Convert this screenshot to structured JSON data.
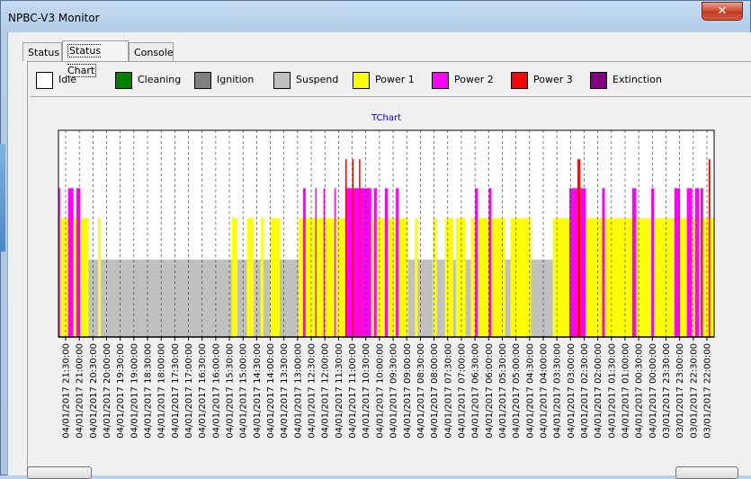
{
  "window": {
    "title": "NPBC-V3 Monitor",
    "close_label": "✕"
  },
  "tabs": [
    {
      "label": "Status",
      "active": false
    },
    {
      "label": "Status Chart",
      "active": true
    },
    {
      "label": "Console",
      "active": false
    }
  ],
  "legend": [
    {
      "label": "Idle",
      "color": "#ffffff"
    },
    {
      "label": "Cleaning",
      "color": "#008000"
    },
    {
      "label": "Ignition",
      "color": "#808080"
    },
    {
      "label": "Suspend",
      "color": "#c0c0c0"
    },
    {
      "label": "Power 1",
      "color": "#ffff00"
    },
    {
      "label": "Power 2",
      "color": "#ff00ff"
    },
    {
      "label": "Power 3",
      "color": "#ff0000"
    },
    {
      "label": "Extinction",
      "color": "#800080"
    }
  ],
  "chart_data": {
    "type": "step-status",
    "title": "TChart",
    "title_color": "#0000ff",
    "levels": [
      "Idle",
      "Cleaning",
      "Ignition",
      "Suspend",
      "Power 1",
      "Power 2",
      "Power 3",
      "Extinction"
    ],
    "x_labels": [
      "04/01/2017 21:30:00",
      "04/01/2017 21:00:00",
      "04/01/2017 20:30:00",
      "04/01/2017 20:00:00",
      "04/01/2017 19:30:00",
      "04/01/2017 19:00:00",
      "04/01/2017 18:30:00",
      "04/01/2017 18:00:00",
      "04/01/2017 17:30:00",
      "04/01/2017 17:00:00",
      "04/01/2017 16:30:00",
      "04/01/2017 16:00:00",
      "04/01/2017 15:30:00",
      "04/01/2017 15:00:00",
      "04/01/2017 14:30:00",
      "04/01/2017 14:00:00",
      "04/01/2017 13:30:00",
      "04/01/2017 13:00:00",
      "04/01/2017 12:30:00",
      "04/01/2017 12:00:00",
      "04/01/2017 11:30:00",
      "04/01/2017 11:00:00",
      "04/01/2017 10:30:00",
      "04/01/2017 10:00:00",
      "04/01/2017 09:30:00",
      "04/01/2017 09:00:00",
      "04/01/2017 08:30:00",
      "04/01/2017 08:00:00",
      "04/01/2017 07:30:00",
      "04/01/2017 07:00:00",
      "04/01/2017 06:30:00",
      "04/01/2017 06:00:00",
      "04/01/2017 05:30:00",
      "04/01/2017 05:00:00",
      "04/01/2017 04:30:00",
      "04/01/2017 04:00:00",
      "04/01/2017 03:30:00",
      "04/01/2017 03:00:00",
      "04/01/2017 02:30:00",
      "04/01/2017 02:00:00",
      "04/01/2017 01:30:00",
      "04/01/2017 01:00:00",
      "04/01/2017 00:30:00",
      "04/01/2017 00:00:00",
      "03/01/2017 23:30:00",
      "03/01/2017 23:00:00",
      "03/01/2017 22:30:00",
      "03/01/2017 22:00:00"
    ],
    "x_range_hours": [
      0,
      24
    ],
    "x_direction": "right-to-left (time decreasing)",
    "baseline_level": "Suspend",
    "segments": [
      {
        "start": 0.0,
        "end": 0.06,
        "level": "Power 2"
      },
      {
        "start": 0.06,
        "end": 0.35,
        "level": "Power 1"
      },
      {
        "start": 0.35,
        "end": 0.55,
        "level": "Power 2"
      },
      {
        "start": 0.55,
        "end": 0.65,
        "level": "Power 1"
      },
      {
        "start": 0.65,
        "end": 0.8,
        "level": "Power 2"
      },
      {
        "start": 0.8,
        "end": 1.1,
        "level": "Power 1"
      },
      {
        "start": 1.1,
        "end": 1.45,
        "level": "Suspend"
      },
      {
        "start": 1.45,
        "end": 1.55,
        "level": "Power 1"
      },
      {
        "start": 1.55,
        "end": 6.35,
        "level": "Suspend"
      },
      {
        "start": 6.35,
        "end": 6.55,
        "level": "Power 1"
      },
      {
        "start": 6.55,
        "end": 6.9,
        "level": "Suspend"
      },
      {
        "start": 6.9,
        "end": 7.15,
        "level": "Power 1"
      },
      {
        "start": 7.15,
        "end": 7.4,
        "level": "Suspend"
      },
      {
        "start": 7.4,
        "end": 7.5,
        "level": "Power 1"
      },
      {
        "start": 7.5,
        "end": 7.75,
        "level": "Suspend"
      },
      {
        "start": 7.75,
        "end": 8.1,
        "level": "Power 1"
      },
      {
        "start": 8.1,
        "end": 8.8,
        "level": "Suspend"
      },
      {
        "start": 8.8,
        "end": 8.95,
        "level": "Power 1"
      },
      {
        "start": 8.95,
        "end": 9.05,
        "level": "Power 2"
      },
      {
        "start": 9.05,
        "end": 9.4,
        "level": "Power 1"
      },
      {
        "start": 9.4,
        "end": 9.45,
        "level": "Power 2"
      },
      {
        "start": 9.45,
        "end": 9.7,
        "level": "Power 1"
      },
      {
        "start": 9.7,
        "end": 9.75,
        "level": "Power 2"
      },
      {
        "start": 9.75,
        "end": 10.1,
        "level": "Power 1"
      },
      {
        "start": 10.1,
        "end": 10.15,
        "level": "Power 2"
      },
      {
        "start": 10.15,
        "end": 10.5,
        "level": "Power 1"
      },
      {
        "start": 10.5,
        "end": 10.55,
        "level": "Power 3"
      },
      {
        "start": 10.55,
        "end": 10.75,
        "level": "Power 2"
      },
      {
        "start": 10.75,
        "end": 10.8,
        "level": "Power 3"
      },
      {
        "start": 10.8,
        "end": 11.0,
        "level": "Power 2"
      },
      {
        "start": 11.0,
        "end": 11.05,
        "level": "Power 3"
      },
      {
        "start": 11.05,
        "end": 11.45,
        "level": "Power 2"
      },
      {
        "start": 11.45,
        "end": 11.55,
        "level": "Power 1"
      },
      {
        "start": 11.55,
        "end": 11.65,
        "level": "Power 2"
      },
      {
        "start": 11.65,
        "end": 11.95,
        "level": "Power 1"
      },
      {
        "start": 11.95,
        "end": 12.05,
        "level": "Power 2"
      },
      {
        "start": 12.05,
        "end": 12.35,
        "level": "Power 1"
      },
      {
        "start": 12.35,
        "end": 12.45,
        "level": "Power 2"
      },
      {
        "start": 12.45,
        "end": 12.8,
        "level": "Power 1"
      },
      {
        "start": 12.8,
        "end": 13.05,
        "level": "Suspend"
      },
      {
        "start": 13.05,
        "end": 13.15,
        "level": "Power 1"
      },
      {
        "start": 13.15,
        "end": 13.7,
        "level": "Suspend"
      },
      {
        "start": 13.7,
        "end": 13.85,
        "level": "Power 1"
      },
      {
        "start": 13.85,
        "end": 14.15,
        "level": "Suspend"
      },
      {
        "start": 14.15,
        "end": 14.45,
        "level": "Power 1"
      },
      {
        "start": 14.45,
        "end": 14.55,
        "level": "Suspend"
      },
      {
        "start": 14.55,
        "end": 14.9,
        "level": "Power 1"
      },
      {
        "start": 14.9,
        "end": 15.1,
        "level": "Suspend"
      },
      {
        "start": 15.1,
        "end": 15.25,
        "level": "Power 1"
      },
      {
        "start": 15.25,
        "end": 15.35,
        "level": "Power 2"
      },
      {
        "start": 15.35,
        "end": 15.75,
        "level": "Power 1"
      },
      {
        "start": 15.75,
        "end": 15.85,
        "level": "Power 2"
      },
      {
        "start": 15.85,
        "end": 16.35,
        "level": "Power 1"
      },
      {
        "start": 16.35,
        "end": 16.55,
        "level": "Suspend"
      },
      {
        "start": 16.55,
        "end": 17.3,
        "level": "Power 1"
      },
      {
        "start": 17.3,
        "end": 18.1,
        "level": "Suspend"
      },
      {
        "start": 18.1,
        "end": 18.7,
        "level": "Power 1"
      },
      {
        "start": 18.7,
        "end": 19.0,
        "level": "Power 2"
      },
      {
        "start": 19.0,
        "end": 19.1,
        "level": "Power 3"
      },
      {
        "start": 19.1,
        "end": 19.3,
        "level": "Power 2"
      },
      {
        "start": 19.3,
        "end": 19.9,
        "level": "Power 1"
      },
      {
        "start": 19.9,
        "end": 20.0,
        "level": "Power 2"
      },
      {
        "start": 20.0,
        "end": 21.0,
        "level": "Power 1"
      },
      {
        "start": 21.0,
        "end": 21.15,
        "level": "Power 2"
      },
      {
        "start": 21.15,
        "end": 21.7,
        "level": "Power 1"
      },
      {
        "start": 21.7,
        "end": 21.8,
        "level": "Power 2"
      },
      {
        "start": 21.8,
        "end": 22.55,
        "level": "Power 1"
      },
      {
        "start": 22.55,
        "end": 22.75,
        "level": "Power 2"
      },
      {
        "start": 22.75,
        "end": 23.0,
        "level": "Power 1"
      },
      {
        "start": 23.0,
        "end": 23.2,
        "level": "Power 2"
      },
      {
        "start": 23.2,
        "end": 23.3,
        "level": "Power 1"
      },
      {
        "start": 23.3,
        "end": 23.45,
        "level": "Power 2"
      },
      {
        "start": 23.45,
        "end": 23.5,
        "level": "Power 1"
      },
      {
        "start": 23.5,
        "end": 23.6,
        "level": "Power 2"
      },
      {
        "start": 23.6,
        "end": 23.8,
        "level": "Power 1"
      },
      {
        "start": 23.8,
        "end": 23.86,
        "level": "Power 3"
      },
      {
        "start": 23.86,
        "end": 24.0,
        "level": "Power 1"
      }
    ]
  },
  "buttons": {
    "left_label": "",
    "right_label": ""
  }
}
